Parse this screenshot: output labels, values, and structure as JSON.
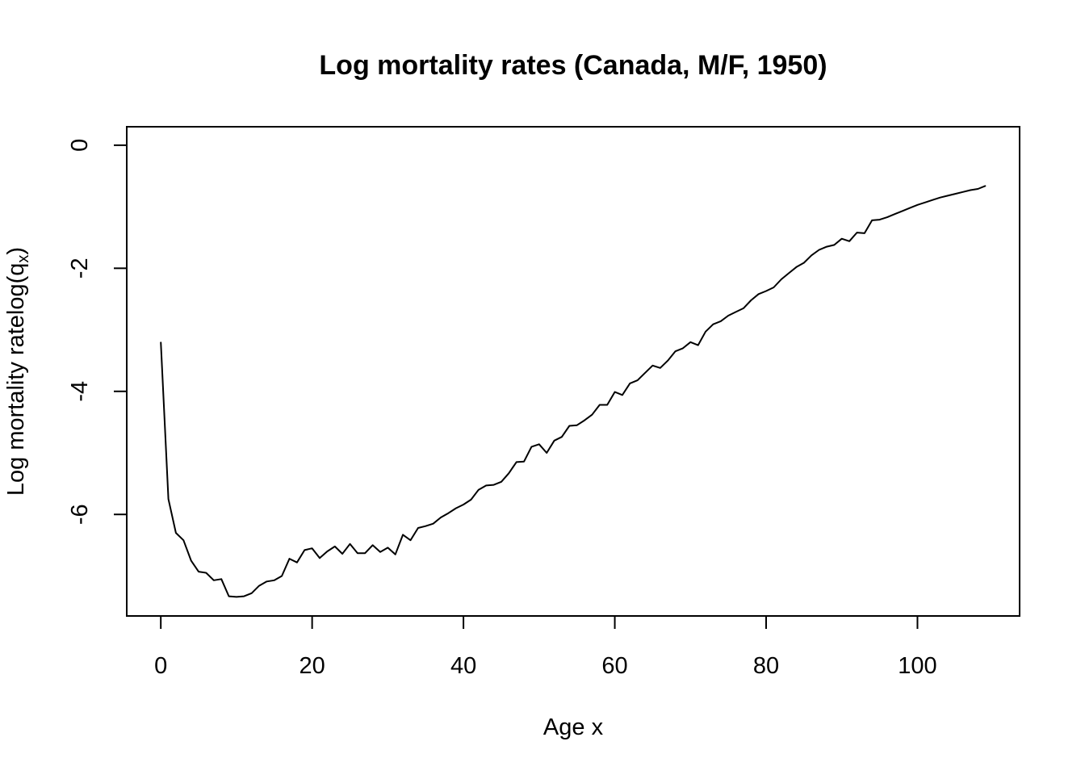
{
  "chart_data": {
    "type": "line",
    "title": "Log mortality rates (Canada, M/F, 1950)",
    "xlabel": "Age x",
    "ylabel_main": "Log mortality rate",
    "ylabel_math": "log(q",
    "ylabel_sub": "x",
    "ylabel_close": ")",
    "xlim": [
      -4.5,
      113.5
    ],
    "ylim": [
      -7.65,
      0.3
    ],
    "x_ticks": [
      0,
      20,
      40,
      60,
      80,
      100
    ],
    "x_tick_labels": [
      "0",
      "20",
      "40",
      "60",
      "80",
      "100"
    ],
    "y_ticks": [
      0,
      -2,
      -4,
      -6
    ],
    "y_tick_labels": [
      "0",
      "-2",
      "-4",
      "-6"
    ],
    "grid": false,
    "x": [
      0,
      1,
      2,
      3,
      4,
      5,
      6,
      7,
      8,
      9,
      10,
      11,
      12,
      13,
      14,
      15,
      16,
      17,
      18,
      19,
      20,
      21,
      22,
      23,
      24,
      25,
      26,
      27,
      28,
      29,
      30,
      31,
      32,
      33,
      34,
      35,
      36,
      37,
      38,
      39,
      40,
      41,
      42,
      43,
      44,
      45,
      46,
      47,
      48,
      49,
      50,
      51,
      52,
      53,
      54,
      55,
      56,
      57,
      58,
      59,
      60,
      61,
      62,
      63,
      64,
      65,
      66,
      67,
      68,
      69,
      70,
      71,
      72,
      73,
      74,
      75,
      76,
      77,
      78,
      79,
      80,
      81,
      82,
      83,
      84,
      85,
      86,
      87,
      88,
      89,
      90,
      91,
      92,
      93,
      94,
      95,
      96,
      97,
      98,
      99,
      100,
      101,
      102,
      103,
      104,
      105,
      106,
      107,
      108,
      109
    ],
    "y": [
      -3.2,
      -5.75,
      -6.3,
      -6.42,
      -6.75,
      -6.93,
      -6.95,
      -7.07,
      -7.05,
      -7.33,
      -7.34,
      -7.33,
      -7.28,
      -7.16,
      -7.09,
      -7.07,
      -7.0,
      -6.72,
      -6.78,
      -6.58,
      -6.55,
      -6.71,
      -6.6,
      -6.52,
      -6.64,
      -6.48,
      -6.63,
      -6.63,
      -6.5,
      -6.61,
      -6.54,
      -6.65,
      -6.33,
      -6.42,
      -6.22,
      -6.19,
      -6.15,
      -6.05,
      -5.98,
      -5.9,
      -5.84,
      -5.76,
      -5.6,
      -5.53,
      -5.52,
      -5.47,
      -5.33,
      -5.15,
      -5.14,
      -4.9,
      -4.86,
      -5.0,
      -4.8,
      -4.74,
      -4.56,
      -4.55,
      -4.47,
      -4.38,
      -4.22,
      -4.22,
      -4.01,
      -4.06,
      -3.87,
      -3.82,
      -3.7,
      -3.58,
      -3.62,
      -3.5,
      -3.35,
      -3.3,
      -3.2,
      -3.25,
      -3.03,
      -2.91,
      -2.86,
      -2.77,
      -2.71,
      -2.65,
      -2.52,
      -2.42,
      -2.37,
      -2.31,
      -2.18,
      -2.08,
      -1.98,
      -1.91,
      -1.79,
      -1.7,
      -1.65,
      -1.62,
      -1.52,
      -1.56,
      -1.42,
      -1.43,
      -1.22,
      -1.21,
      -1.17,
      -1.12,
      -1.07,
      -1.02,
      -0.97,
      -0.93,
      -0.89,
      -0.85,
      -0.82,
      -0.79,
      -0.76,
      -0.73,
      -0.71,
      -0.66
    ]
  }
}
